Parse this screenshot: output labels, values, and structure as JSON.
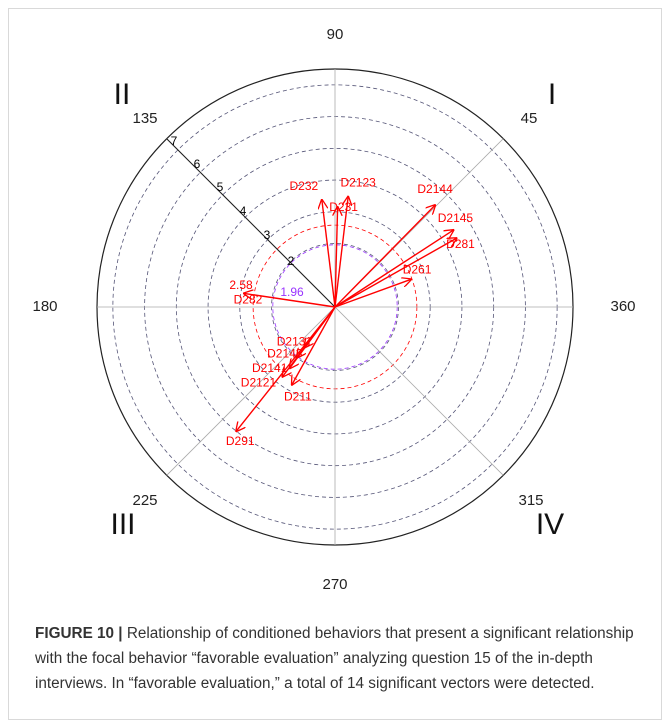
{
  "chart_data": {
    "type": "polar-vector",
    "title": "",
    "angle_ticks": [
      "90",
      "45",
      "360",
      "315",
      "270",
      "225",
      "180",
      "135"
    ],
    "radial_ticks": [
      "2",
      "3",
      "4",
      "5",
      "6",
      "7"
    ],
    "quadrants": [
      "I",
      "II",
      "III",
      "IV"
    ],
    "thresholds": [
      {
        "label": "1.96",
        "value": 1.96,
        "color": "#9933ff"
      },
      {
        "label": "2.58",
        "value": 2.58,
        "color": "#ff0000"
      }
    ],
    "series": [
      {
        "label": "D2144",
        "angle": 45.5,
        "radius": 4.5
      },
      {
        "label": "D2145",
        "angle": 33,
        "radius": 4.45
      },
      {
        "label": "D281",
        "angle": 29.5,
        "radius": 4.4
      },
      {
        "label": "D261",
        "angle": 20,
        "radius": 2.55
      },
      {
        "label": "D2123",
        "angle": 83.2,
        "radius": 3.5
      },
      {
        "label": "D232",
        "angle": 97,
        "radius": 3.4
      },
      {
        "label": "D231",
        "angle": 88.5,
        "radius": 3.15
      },
      {
        "label": "D282",
        "angle": 171.5,
        "radius": 2.9
      },
      {
        "label": "D2131",
        "angle": 233,
        "radius": 1.6
      },
      {
        "label": "D2143",
        "angle": 233,
        "radius": 2.0
      },
      {
        "label": "D2141",
        "angle": 233.5,
        "radius": 2.4
      },
      {
        "label": "D2121",
        "angle": 233,
        "radius": 2.75
      },
      {
        "label": "D211",
        "angle": 241,
        "radius": 2.8
      },
      {
        "label": "D291",
        "angle": 231.5,
        "radius": 5.0
      }
    ]
  },
  "caption": {
    "figure_label": "FIGURE 10 |",
    "text": "Relationship of conditioned behaviors that present a significant relationship with the focal behavior “favorable evaluation” analyzing question 15 of the in-depth interviews. In “favorable evaluation,” a total of 14 significant vectors were detected."
  }
}
